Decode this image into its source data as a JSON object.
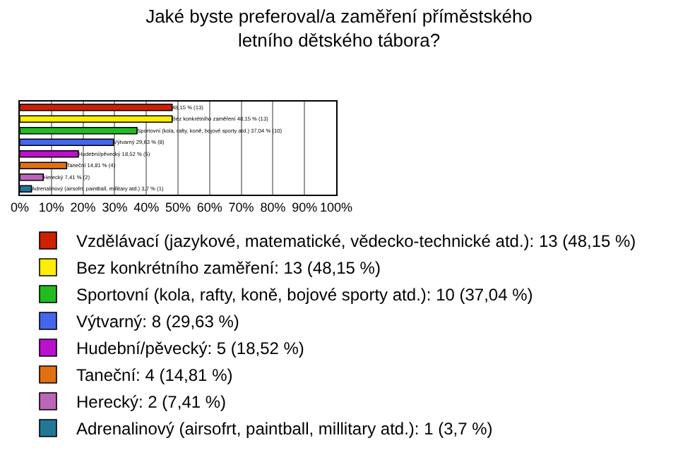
{
  "chart_data": {
    "type": "bar",
    "orientation": "horizontal",
    "title": "Jaké byste preferoval/a zaměření příměstského letního dětského tábora?",
    "categories": [
      null,
      null,
      null,
      null,
      null,
      null,
      null,
      null
    ],
    "series": [
      {
        "name": "Vzdělávací (jazykové, matematické, vědecko-technické atd.): 13 (48,15 %)",
        "color": "#cc2200",
        "values": [
          48.15,
          null,
          null,
          null,
          null,
          null,
          null,
          null
        ],
        "value_labels": [
          "48,15 % (13)",
          null,
          null,
          null,
          null,
          null,
          null,
          null
        ]
      },
      {
        "name": "Bez konkrétního zaměření: 13 (48,15 %)",
        "color": "#ffee00",
        "values": [
          null,
          48.15,
          null,
          null,
          null,
          null,
          null,
          null
        ],
        "value_labels": [
          null,
          "Bez konkrétního zaměření 48,15 % (13)",
          null,
          null,
          null,
          null,
          null,
          null
        ]
      },
      {
        "name": "Sportovní (kola, rafty, koně, bojové sporty atd.): 10 (37,04 %)",
        "color": "#22bb22",
        "values": [
          null,
          null,
          37.04,
          null,
          null,
          null,
          null,
          null
        ],
        "value_labels": [
          null,
          null,
          "Sportovní (kola, rafty, koně, bojové sporty atd.) 37,04 % (10)",
          null,
          null,
          null,
          null,
          null
        ]
      },
      {
        "name": "Výtvarný: 8 (29,63 %)",
        "color": "#4466ee",
        "values": [
          null,
          null,
          null,
          29.63,
          null,
          null,
          null,
          null
        ],
        "value_labels": [
          null,
          null,
          null,
          "Výtvarný 29,63 % (8)",
          null,
          null,
          null,
          null
        ]
      },
      {
        "name": "Hudební/pěvecký: 5 (18,52 %)",
        "color": "#bb11cc",
        "values": [
          null,
          null,
          null,
          null,
          18.52,
          null,
          null,
          null
        ],
        "value_labels": [
          null,
          null,
          null,
          null,
          "Hudební/pěvecký 18,52 % (5)",
          null,
          null,
          null
        ]
      },
      {
        "name": "Taneční: 4 (14,81 %)",
        "color": "#e07010",
        "values": [
          null,
          null,
          null,
          null,
          null,
          14.81,
          null,
          null
        ],
        "value_labels": [
          null,
          null,
          null,
          null,
          null,
          "Taneční 14,81 % (4)",
          null,
          null
        ]
      },
      {
        "name": "Herecký: 2 (7,41 %)",
        "color": "#bb66bb",
        "values": [
          null,
          null,
          null,
          null,
          null,
          null,
          7.41,
          null
        ],
        "value_labels": [
          null,
          null,
          null,
          null,
          null,
          null,
          "Herecký 7,41 % (2)",
          null
        ]
      },
      {
        "name": "Adrenalinový (airsofrt, paintball, millitary atd.): 1 (3,7 %)",
        "color": "#227799",
        "values": [
          null,
          null,
          null,
          null,
          null,
          null,
          null,
          3.7
        ],
        "value_labels": [
          null,
          null,
          null,
          null,
          null,
          null,
          null,
          "Adrenalinový (airsofrt, paintball, millitary atd.) 3,7 % (1)"
        ]
      }
    ],
    "xlim": [
      0,
      100
    ],
    "xticks": [
      {
        "value": 0,
        "label": "0%"
      },
      {
        "value": 10,
        "label": "10%"
      },
      {
        "value": 20,
        "label": "20%"
      },
      {
        "value": 30,
        "label": "30%"
      },
      {
        "value": 40,
        "label": "40%"
      },
      {
        "value": 50,
        "label": "50%"
      },
      {
        "value": 60,
        "label": "60%"
      },
      {
        "value": 70,
        "label": "70%"
      },
      {
        "value": 80,
        "label": "80%"
      },
      {
        "value": 90,
        "label": "90%"
      },
      {
        "value": 100,
        "label": "100%"
      }
    ],
    "grid": "x",
    "legend": "bottom",
    "tick_labels": "x"
  }
}
